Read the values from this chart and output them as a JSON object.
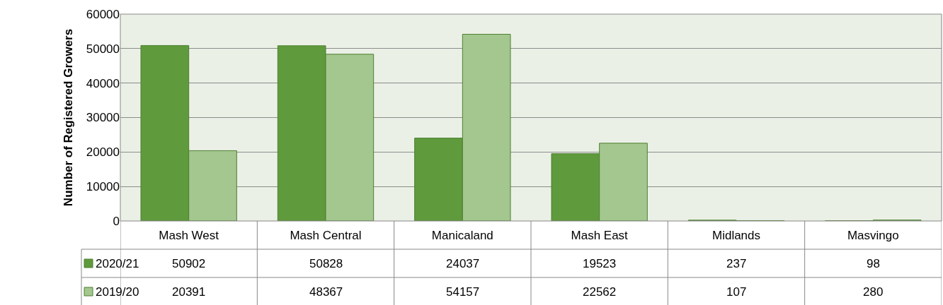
{
  "chart_data": {
    "type": "bar",
    "ylabel": "Number of Registered Growers",
    "categories": [
      "Mash West",
      "Mash Central",
      "Manicaland",
      "Mash East",
      "Midlands",
      "Masvingo"
    ],
    "series": [
      {
        "name": "2020/21",
        "color": "#5f9a3c",
        "values": [
          50902,
          50828,
          24037,
          19523,
          237,
          98
        ]
      },
      {
        "name": "2019/20",
        "color": "#a3c78e",
        "values": [
          20391,
          48367,
          54157,
          22562,
          107,
          280
        ]
      }
    ],
    "ylim": [
      0,
      60000
    ],
    "yticks": [
      0,
      10000,
      20000,
      30000,
      40000,
      50000,
      60000
    ],
    "grid": "y",
    "legend": "bottom left",
    "data_labels": true
  }
}
